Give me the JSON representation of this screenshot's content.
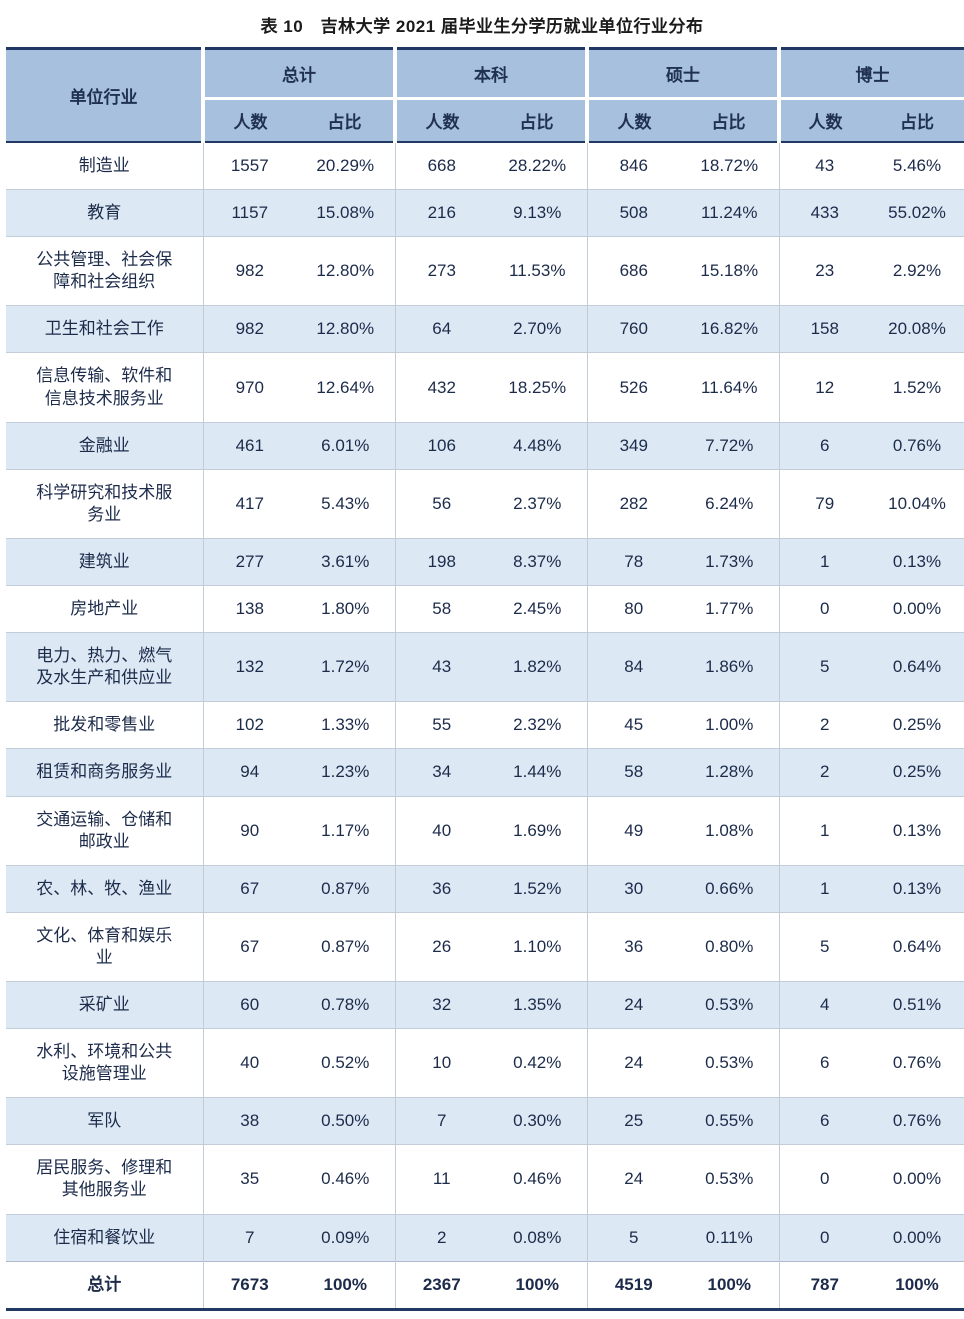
{
  "title": "表 10　吉林大学 2021 届毕业生分学历就业单位行业分布",
  "table": {
    "corner_header": "单位行业",
    "groups": [
      {
        "key": "total",
        "label": "总计",
        "sub": [
          "人数",
          "占比"
        ]
      },
      {
        "key": "bachelor",
        "label": "本科",
        "sub": [
          "人数",
          "占比"
        ]
      },
      {
        "key": "master",
        "label": "硕士",
        "sub": [
          "人数",
          "占比"
        ]
      },
      {
        "key": "doctor",
        "label": "博士",
        "sub": [
          "人数",
          "占比"
        ]
      }
    ],
    "rows": [
      {
        "industry": "制造业",
        "values": [
          "1557",
          "20.29%",
          "668",
          "28.22%",
          "846",
          "18.72%",
          "43",
          "5.46%"
        ]
      },
      {
        "industry": "教育",
        "values": [
          "1157",
          "15.08%",
          "216",
          "9.13%",
          "508",
          "11.24%",
          "433",
          "55.02%"
        ]
      },
      {
        "industry": "公共管理、社会保障和社会组织",
        "values": [
          "982",
          "12.80%",
          "273",
          "11.53%",
          "686",
          "15.18%",
          "23",
          "2.92%"
        ]
      },
      {
        "industry": "卫生和社会工作",
        "values": [
          "982",
          "12.80%",
          "64",
          "2.70%",
          "760",
          "16.82%",
          "158",
          "20.08%"
        ]
      },
      {
        "industry": "信息传输、软件和信息技术服务业",
        "values": [
          "970",
          "12.64%",
          "432",
          "18.25%",
          "526",
          "11.64%",
          "12",
          "1.52%"
        ]
      },
      {
        "industry": "金融业",
        "values": [
          "461",
          "6.01%",
          "106",
          "4.48%",
          "349",
          "7.72%",
          "6",
          "0.76%"
        ]
      },
      {
        "industry": "科学研究和技术服务业",
        "values": [
          "417",
          "5.43%",
          "56",
          "2.37%",
          "282",
          "6.24%",
          "79",
          "10.04%"
        ]
      },
      {
        "industry": "建筑业",
        "values": [
          "277",
          "3.61%",
          "198",
          "8.37%",
          "78",
          "1.73%",
          "1",
          "0.13%"
        ]
      },
      {
        "industry": "房地产业",
        "values": [
          "138",
          "1.80%",
          "58",
          "2.45%",
          "80",
          "1.77%",
          "0",
          "0.00%"
        ]
      },
      {
        "industry": "电力、热力、燃气及水生产和供应业",
        "values": [
          "132",
          "1.72%",
          "43",
          "1.82%",
          "84",
          "1.86%",
          "5",
          "0.64%"
        ]
      },
      {
        "industry": "批发和零售业",
        "values": [
          "102",
          "1.33%",
          "55",
          "2.32%",
          "45",
          "1.00%",
          "2",
          "0.25%"
        ]
      },
      {
        "industry": "租赁和商务服务业",
        "values": [
          "94",
          "1.23%",
          "34",
          "1.44%",
          "58",
          "1.28%",
          "2",
          "0.25%"
        ]
      },
      {
        "industry": "交通运输、仓储和邮政业",
        "values": [
          "90",
          "1.17%",
          "40",
          "1.69%",
          "49",
          "1.08%",
          "1",
          "0.13%"
        ]
      },
      {
        "industry": "农、林、牧、渔业",
        "values": [
          "67",
          "0.87%",
          "36",
          "1.52%",
          "30",
          "0.66%",
          "1",
          "0.13%"
        ]
      },
      {
        "industry": "文化、体育和娱乐业",
        "values": [
          "67",
          "0.87%",
          "26",
          "1.10%",
          "36",
          "0.80%",
          "5",
          "0.64%"
        ]
      },
      {
        "industry": "采矿业",
        "values": [
          "60",
          "0.78%",
          "32",
          "1.35%",
          "24",
          "0.53%",
          "4",
          "0.51%"
        ]
      },
      {
        "industry": "水利、环境和公共设施管理业",
        "values": [
          "40",
          "0.52%",
          "10",
          "0.42%",
          "24",
          "0.53%",
          "6",
          "0.76%"
        ]
      },
      {
        "industry": "军队",
        "values": [
          "38",
          "0.50%",
          "7",
          "0.30%",
          "25",
          "0.55%",
          "6",
          "0.76%"
        ]
      },
      {
        "industry": "居民服务、修理和其他服务业",
        "values": [
          "35",
          "0.46%",
          "11",
          "0.46%",
          "24",
          "0.53%",
          "0",
          "0.00%"
        ]
      },
      {
        "industry": "住宿和餐饮业",
        "values": [
          "7",
          "0.09%",
          "2",
          "0.08%",
          "5",
          "0.11%",
          "0",
          "0.00%"
        ]
      }
    ],
    "total_row": {
      "industry": "总计",
      "values": [
        "7673",
        "100%",
        "2367",
        "100%",
        "4519",
        "100%",
        "787",
        "100%"
      ]
    }
  },
  "colors": {
    "header_bg": "#a6c0dd",
    "alt_row_bg": "#dce8f4",
    "frame_border": "#1f3864",
    "grid_line": "#c3cdd9",
    "header_text": "#1f3050",
    "body_text": "#1c2b4a"
  }
}
